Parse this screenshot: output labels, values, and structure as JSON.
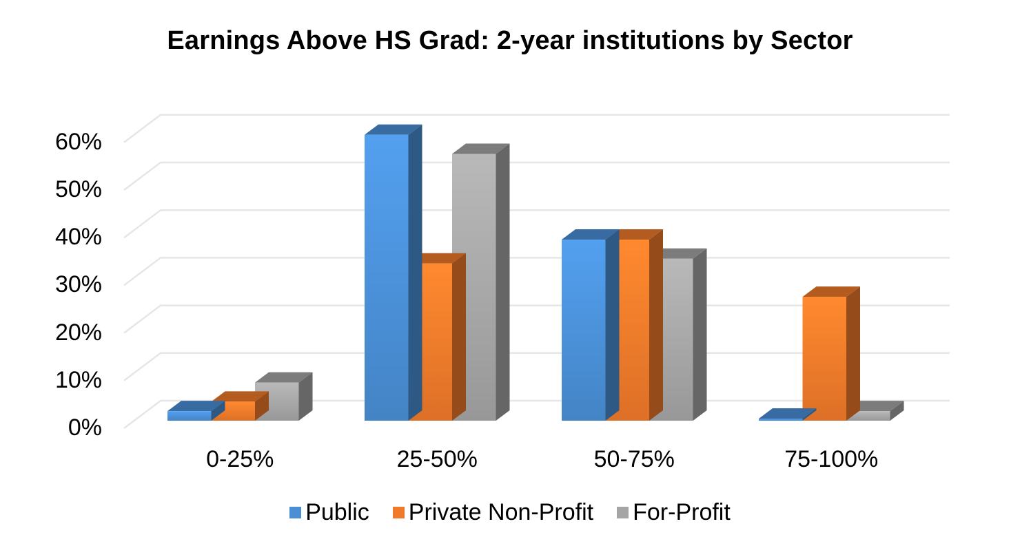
{
  "chart_data": {
    "type": "bar",
    "title": "Earnings Above HS Grad: 2-year institutions by Sector",
    "xlabel": "",
    "ylabel": "",
    "categories": [
      "0-25%",
      "25-50%",
      "50-75%",
      "75-100%"
    ],
    "series": [
      {
        "name": "Public",
        "color": "#4a8fd6",
        "values": [
          2,
          60,
          38,
          0.3
        ]
      },
      {
        "name": "Private Non-Profit",
        "color": "#f07a2a",
        "values": [
          4,
          33,
          38,
          26
        ]
      },
      {
        "name": "For-Profit",
        "color": "#a5a5a5",
        "values": [
          8,
          56,
          34,
          2
        ]
      }
    ],
    "yticks": [
      "0%",
      "10%",
      "20%",
      "30%",
      "40%",
      "50%",
      "60%"
    ],
    "ylim": [
      0,
      60
    ],
    "grid": true,
    "legend_position": "bottom",
    "style": "3D clustered column"
  }
}
